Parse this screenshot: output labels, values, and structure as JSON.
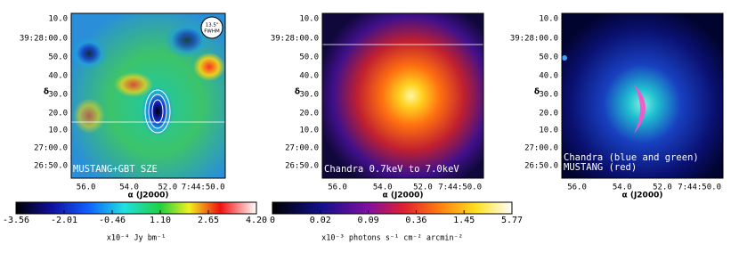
{
  "panels": [
    {
      "annotation": "MUSTANG+GBT SZE",
      "beam": [
        "13.5\"",
        "FWHM"
      ],
      "yticks": [
        "10.0",
        "39:28:00.0",
        "50.0",
        "40.0",
        "30.0",
        "20.0",
        "10.0",
        "27:00.0",
        "26:50.0"
      ],
      "xticks": [
        "56.0",
        "54.0",
        "52.0",
        "7:44:50.0"
      ],
      "ylabel": "δ",
      "xlabel": "α (J2000)"
    },
    {
      "annotation": "Chandra 0.7keV to 7.0keV",
      "yticks": [
        "10.0",
        "39:28:00.0",
        "50.0",
        "40.0",
        "30.0",
        "20.0",
        "10.0",
        "27:00.0",
        "26:50.0"
      ],
      "xticks": [
        "56.0",
        "54.0",
        "52.0",
        "7:44:50.0"
      ],
      "ylabel": "δ",
      "xlabel": "α (J2000)"
    },
    {
      "annotation": [
        "Chandra (blue and green)",
        "MUSTANG (red)"
      ],
      "yticks": [
        "10.0",
        "39:28:00.0",
        "50.0",
        "40.0",
        "30.0",
        "20.0",
        "10.0",
        "27:00.0",
        "26:50.0"
      ],
      "xticks": [
        "56.0",
        "54.0",
        "52.0",
        "7:44:50.0"
      ],
      "ylabel": "δ",
      "xlabel": "α (J2000)"
    }
  ],
  "colorbars": [
    {
      "ticks": [
        "-3.56",
        "-2.01",
        "-0.46",
        "1.10",
        "2.65",
        "4.20"
      ],
      "unit": "x10⁻⁴ Jy bm⁻¹"
    },
    {
      "ticks": [
        "0",
        "0.02",
        "0.09",
        "0.36",
        "1.45",
        "5.77"
      ],
      "unit": "x10⁻³ photons s⁻¹ cm⁻² arcmin⁻²"
    }
  ]
}
